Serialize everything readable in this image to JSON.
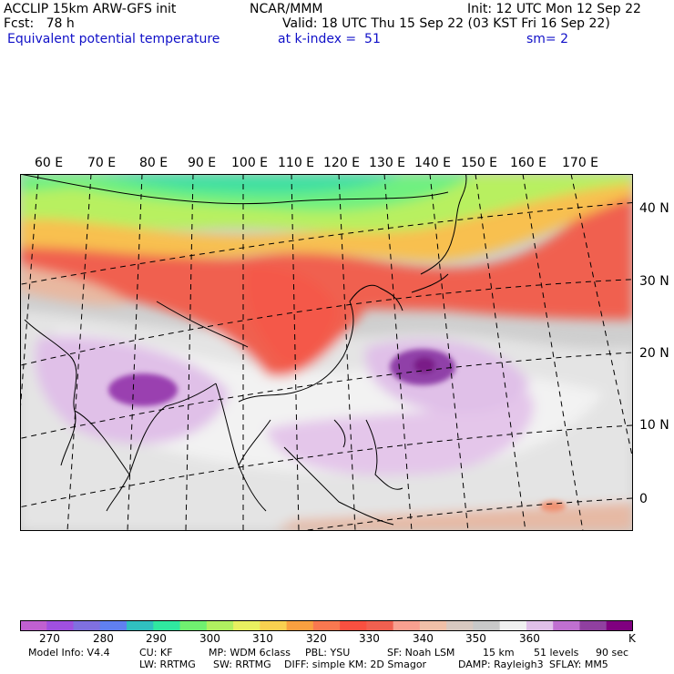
{
  "header": {
    "model": "ACCLIP 15km ARW-GFS init",
    "forecast": "Fcst:   78 h",
    "field": "Equivalent potential temperature",
    "center": "NCAR/MMM",
    "valid": "Valid: 18 UTC Thu 15 Sep 22 (03 KST Fri 16 Sep 22)",
    "level": "at k-index =  51",
    "init": "Init: 12 UTC Mon 12 Sep 22",
    "smoothing": "sm= 2"
  },
  "map": {
    "lon_labels": [
      "60 E",
      "70 E",
      "80 E",
      "90 E",
      "100 E",
      "110 E",
      "120 E",
      "130 E",
      "140 E",
      "150 E",
      "160 E",
      "170 E"
    ],
    "lat_labels": [
      "40 N",
      "30 N",
      "20 N",
      "10 N",
      "0"
    ]
  },
  "colorbar": {
    "colors": [
      "#c060d0",
      "#a050e0",
      "#8070e0",
      "#6080f0",
      "#30c0c0",
      "#30e8a0",
      "#70f070",
      "#b0f060",
      "#e8f060",
      "#f8d050",
      "#f8a040",
      "#f87850",
      "#f85040",
      "#f06050",
      "#f8a090",
      "#f0c0a8",
      "#d8c8c0",
      "#c8c8c8",
      "#f0f0f0",
      "#e0c0e8",
      "#c070d0",
      "#9040a0",
      "#800080"
    ],
    "labels": [
      "270",
      "280",
      "290",
      "300",
      "310",
      "320",
      "330",
      "340",
      "350",
      "360"
    ],
    "unit": "K"
  },
  "footer": {
    "line1": [
      {
        "label": "Model Info: V4.4"
      },
      {
        "label": "CU: KF"
      },
      {
        "label": "MP: WDM 6class"
      },
      {
        "label": "PBL: YSU"
      },
      {
        "label": "SF: Noah LSM"
      },
      {
        "label": "15 km"
      },
      {
        "label": "51 levels"
      },
      {
        "label": "90 sec"
      }
    ],
    "line2": [
      {
        "label": "LW: RRTMG"
      },
      {
        "label": "SW: RRTMG"
      },
      {
        "label": "DIFF: simple KM: 2D Smagor"
      },
      {
        "label": "DAMP: Rayleigh3"
      },
      {
        "label": "SFLAY: MM5"
      }
    ]
  }
}
